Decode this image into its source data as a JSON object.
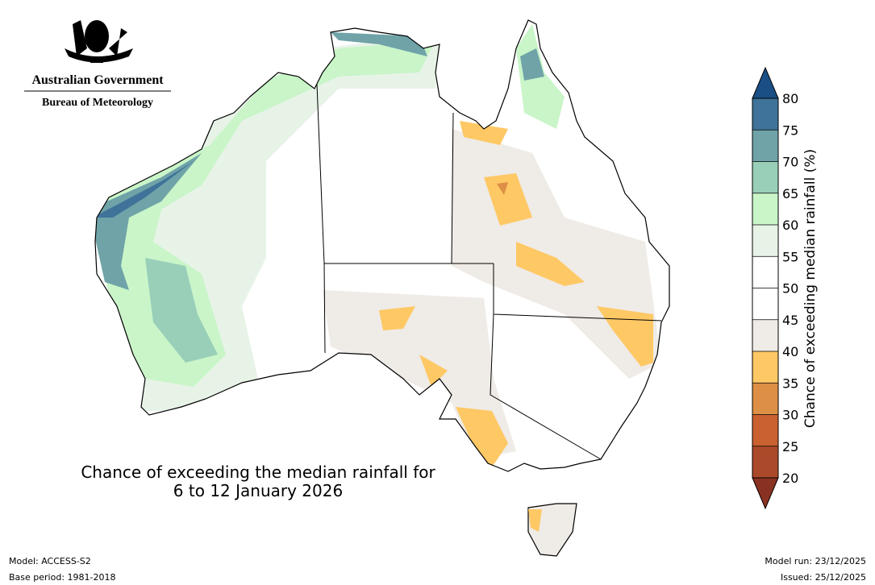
{
  "header": {
    "agency": "Australian Government",
    "bureau": "Bureau of Meteorology"
  },
  "map": {
    "title_line1": "Chance of exceeding the median rainfall for",
    "title_line2": "6 to 12 January 2026"
  },
  "colorbar": {
    "label": "Chance of exceeding median rainfall (%)",
    "ticks": [
      20,
      25,
      30,
      35,
      40,
      45,
      50,
      55,
      60,
      65,
      70,
      75,
      80
    ],
    "colors": [
      "#8a3222",
      "#ab4a2a",
      "#c96131",
      "#dd9045",
      "#fec865",
      "#efebe6",
      "#ffffff",
      "#ffffff",
      "#e8f3e8",
      "#c9f5c9",
      "#99cfb9",
      "#6fa3a8",
      "#3f7399",
      "#1a4f85"
    ]
  },
  "footer": {
    "model": "Model: ACCESS-S2",
    "base_period": "Base period: 1981-2018",
    "model_run": "Model run: 23/12/2025",
    "issued": "Issued: 25/12/2025"
  }
}
